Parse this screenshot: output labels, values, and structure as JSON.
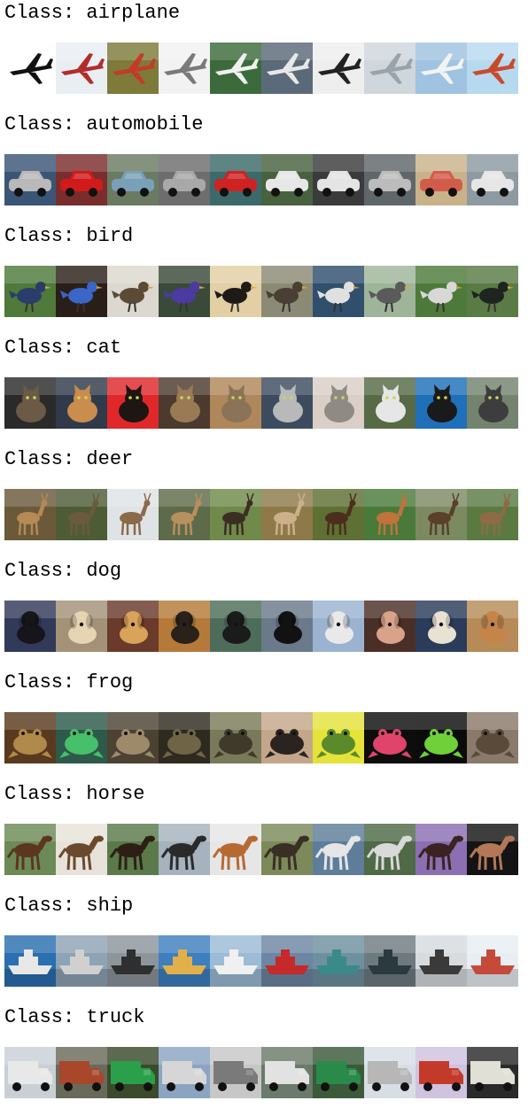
{
  "label_prefix": "Class:",
  "classes": [
    {
      "name": "airplane",
      "thumbs": [
        {
          "bg": "#ffffff",
          "fg": "#111111",
          "icon": "plane"
        },
        {
          "bg": "#e9eef3",
          "fg": "#b32c2c",
          "icon": "plane"
        },
        {
          "bg": "#7d7a3a",
          "fg": "#c33a2a",
          "icon": "plane"
        },
        {
          "bg": "#f2f2f2",
          "fg": "#7a7a7a",
          "icon": "plane"
        },
        {
          "bg": "#3b6b3b",
          "fg": "#f0f0f0",
          "icon": "plane"
        },
        {
          "bg": "#5b6a78",
          "fg": "#e8e8e8",
          "icon": "plane"
        },
        {
          "bg": "#eeeeee",
          "fg": "#222222",
          "icon": "plane"
        },
        {
          "bg": "#cfd6dc",
          "fg": "#9aa3ab",
          "icon": "plane"
        },
        {
          "bg": "#9fc3e0",
          "fg": "#f3f3f3",
          "icon": "plane"
        },
        {
          "bg": "#b7d9ef",
          "fg": "#c84a2d",
          "icon": "plane"
        }
      ]
    },
    {
      "name": "automobile",
      "thumbs": [
        {
          "bg": "#3a5576",
          "fg": "#b9b9b9",
          "icon": "car"
        },
        {
          "bg": "#7a2d2d",
          "fg": "#d11a1a",
          "icon": "car"
        },
        {
          "bg": "#6a7b62",
          "fg": "#7aa0b7",
          "icon": "car"
        },
        {
          "bg": "#6d6d6d",
          "fg": "#a8a8a8",
          "icon": "car"
        },
        {
          "bg": "#3c6a6a",
          "fg": "#cf2323",
          "icon": "car"
        },
        {
          "bg": "#48623f",
          "fg": "#e7e7e7",
          "icon": "car"
        },
        {
          "bg": "#3b3b3b",
          "fg": "#e4e4e4",
          "icon": "car"
        },
        {
          "bg": "#60676a",
          "fg": "#bcbcbc",
          "icon": "car"
        },
        {
          "bg": "#c9b28a",
          "fg": "#d25c4a",
          "icon": "car"
        },
        {
          "bg": "#8d9aa2",
          "fg": "#e6e6e6",
          "icon": "car"
        }
      ]
    },
    {
      "name": "bird",
      "thumbs": [
        {
          "bg": "#4f7a3a",
          "fg": "#2a3d6a",
          "icon": "bird"
        },
        {
          "bg": "#2a1f18",
          "fg": "#3a66c9",
          "icon": "bird"
        },
        {
          "bg": "#dcd8cf",
          "fg": "#5b4a36",
          "icon": "bird"
        },
        {
          "bg": "#3a4a38",
          "fg": "#4b3aa0",
          "icon": "bird"
        },
        {
          "bg": "#e3cfa4",
          "fg": "#1e1b17",
          "icon": "bird"
        },
        {
          "bg": "#8b8a74",
          "fg": "#4a3f34",
          "icon": "bird"
        },
        {
          "bg": "#2f4f6d",
          "fg": "#e0e0e0",
          "icon": "bird"
        },
        {
          "bg": "#9fb59a",
          "fg": "#5a5a5a",
          "icon": "bird"
        },
        {
          "bg": "#4d7a3a",
          "fg": "#d8d8d8",
          "icon": "bird"
        },
        {
          "bg": "#5a7a46",
          "fg": "#1e2420",
          "icon": "bird"
        }
      ]
    },
    {
      "name": "cat",
      "thumbs": [
        {
          "bg": "#2a2a2a",
          "fg": "#6a5a46",
          "icon": "cat"
        },
        {
          "bg": "#303a4a",
          "fg": "#c98d4e",
          "icon": "cat"
        },
        {
          "bg": "#e0282b",
          "fg": "#1d1612",
          "icon": "cat"
        },
        {
          "bg": "#4b3a2d",
          "fg": "#9a7a55",
          "icon": "cat"
        },
        {
          "bg": "#b0875a",
          "fg": "#8a7357",
          "icon": "cat"
        },
        {
          "bg": "#3c4c5e",
          "fg": "#b9b9b9",
          "icon": "cat"
        },
        {
          "bg": "#d9cfc7",
          "fg": "#908a85",
          "icon": "cat"
        },
        {
          "bg": "#566a45",
          "fg": "#e6e6e6",
          "icon": "cat"
        },
        {
          "bg": "#1f6fb9",
          "fg": "#1a1a1a",
          "icon": "cat"
        },
        {
          "bg": "#74836e",
          "fg": "#3d3d3d",
          "icon": "cat"
        }
      ]
    },
    {
      "name": "deer",
      "thumbs": [
        {
          "bg": "#6a5a3a",
          "fg": "#b58a55",
          "icon": "deer"
        },
        {
          "bg": "#4e5c36",
          "fg": "#6b5a3d",
          "icon": "deer"
        },
        {
          "bg": "#dfe3e6",
          "fg": "#8a6a48",
          "icon": "deer"
        },
        {
          "bg": "#5d6b4a",
          "fg": "#b6905e",
          "icon": "deer"
        },
        {
          "bg": "#6f8a4a",
          "fg": "#3b2e22",
          "icon": "deer"
        },
        {
          "bg": "#8e7a49",
          "fg": "#cbb08a",
          "icon": "deer"
        },
        {
          "bg": "#5e7034",
          "fg": "#4b2e1c",
          "icon": "deer"
        },
        {
          "bg": "#4a7a3a",
          "fg": "#c2733b",
          "icon": "deer"
        },
        {
          "bg": "#7c8a62",
          "fg": "#58402a",
          "icon": "deer"
        },
        {
          "bg": "#5a7a42",
          "fg": "#8f6a46",
          "icon": "deer"
        }
      ]
    },
    {
      "name": "dog",
      "thumbs": [
        {
          "bg": "#323a5a",
          "fg": "#16161a",
          "icon": "dog"
        },
        {
          "bg": "#a39278",
          "fg": "#e6d4b2",
          "icon": "dog"
        },
        {
          "bg": "#6a3a2a",
          "fg": "#d9a35a",
          "icon": "dog"
        },
        {
          "bg": "#b57a3a",
          "fg": "#2a211a",
          "icon": "dog"
        },
        {
          "bg": "#4d6d5a",
          "fg": "#1b1b1b",
          "icon": "dog"
        },
        {
          "bg": "#6a7a8a",
          "fg": "#121212",
          "icon": "dog"
        },
        {
          "bg": "#9bb3d1",
          "fg": "#e9e9e9",
          "icon": "dog"
        },
        {
          "bg": "#4a2f27",
          "fg": "#d9a38a",
          "icon": "dog"
        },
        {
          "bg": "#2b3b5a",
          "fg": "#e8e2d2",
          "icon": "dog"
        },
        {
          "bg": "#b78b58",
          "fg": "#c4844a",
          "icon": "dog"
        }
      ]
    },
    {
      "name": "frog",
      "thumbs": [
        {
          "bg": "#5a3a1e",
          "fg": "#b08a4a",
          "icon": "frog"
        },
        {
          "bg": "#2d5a4a",
          "fg": "#46c06a",
          "icon": "frog"
        },
        {
          "bg": "#4b4232",
          "fg": "#9c8a6a",
          "icon": "frog"
        },
        {
          "bg": "#2f2a20",
          "fg": "#6f6446",
          "icon": "frog"
        },
        {
          "bg": "#7a7a5a",
          "fg": "#3f3a2a",
          "icon": "frog"
        },
        {
          "bg": "#c4a68a",
          "fg": "#2a2420",
          "icon": "frog"
        },
        {
          "bg": "#e5e23a",
          "fg": "#5a8a2a",
          "icon": "frog"
        },
        {
          "bg": "#0d0d0d",
          "fg": "#e0446a",
          "icon": "frog"
        },
        {
          "bg": "#0b0b0b",
          "fg": "#6fd03a",
          "icon": "frog"
        },
        {
          "bg": "#8a7a6a",
          "fg": "#5a4a3a",
          "icon": "frog"
        }
      ]
    },
    {
      "name": "horse",
      "thumbs": [
        {
          "bg": "#6c8a56",
          "fg": "#5b3620",
          "icon": "horse"
        },
        {
          "bg": "#e7e3da",
          "fg": "#6a4a2c",
          "icon": "horse"
        },
        {
          "bg": "#5a7a4a",
          "fg": "#2d1f16",
          "icon": "horse"
        },
        {
          "bg": "#a6b2bd",
          "fg": "#2a2a2a",
          "icon": "horse"
        },
        {
          "bg": "#e6e6e6",
          "fg": "#b66a32",
          "icon": "horse"
        },
        {
          "bg": "#7c8a5a",
          "fg": "#3a2f24",
          "icon": "horse"
        },
        {
          "bg": "#5d7d9a",
          "fg": "#e6e6e6",
          "icon": "horse"
        },
        {
          "bg": "#4e6a46",
          "fg": "#d9d9d9",
          "icon": "horse"
        },
        {
          "bg": "#8a6fb2",
          "fg": "#3a2320",
          "icon": "horse"
        },
        {
          "bg": "#141414",
          "fg": "#b37858",
          "icon": "horse"
        }
      ]
    },
    {
      "name": "ship",
      "thumbs": [
        {
          "bg": "#2a6fb0",
          "fg": "#e8e8e8",
          "icon": "ship"
        },
        {
          "bg": "#8ea3b5",
          "fg": "#d0d0d0",
          "icon": "ship"
        },
        {
          "bg": "#8d959b",
          "fg": "#2f2f2f",
          "icon": "ship"
        },
        {
          "bg": "#3d7fbf",
          "fg": "#e2b04a",
          "icon": "ship"
        },
        {
          "bg": "#9bbbd6",
          "fg": "#f0f0f0",
          "icon": "ship"
        },
        {
          "bg": "#6d86a3",
          "fg": "#c42a2a",
          "icon": "ship"
        },
        {
          "bg": "#6f90a0",
          "fg": "#3a8a8a",
          "icon": "ship"
        },
        {
          "bg": "#6f7a80",
          "fg": "#2a3a3f",
          "icon": "ship"
        },
        {
          "bg": "#d7dbdd",
          "fg": "#3a3a3a",
          "icon": "ship"
        },
        {
          "bg": "#e8eef3",
          "fg": "#c54a3a",
          "icon": "ship"
        }
      ]
    },
    {
      "name": "truck",
      "thumbs": [
        {
          "bg": "#c8d0d6",
          "fg": "#e8e8e8",
          "icon": "truck"
        },
        {
          "bg": "#6a6a5a",
          "fg": "#a8472c",
          "icon": "truck"
        },
        {
          "bg": "#3a4a2a",
          "fg": "#2aa04a",
          "icon": "truck"
        },
        {
          "bg": "#8aa4c2",
          "fg": "#d6d6d6",
          "icon": "truck"
        },
        {
          "bg": "#c7c7c7",
          "fg": "#7a7a7a",
          "icon": "truck"
        },
        {
          "bg": "#6b7a6a",
          "fg": "#e2e2e2",
          "icon": "truck"
        },
        {
          "bg": "#3a5a3a",
          "fg": "#2a8a4a",
          "icon": "truck"
        },
        {
          "bg": "#d7dfe4",
          "fg": "#b7b7b7",
          "icon": "truck"
        },
        {
          "bg": "#cfc3e0",
          "fg": "#c43a2a",
          "icon": "truck"
        },
        {
          "bg": "#2a2a2a",
          "fg": "#e0e0d6",
          "icon": "truck"
        }
      ]
    }
  ]
}
